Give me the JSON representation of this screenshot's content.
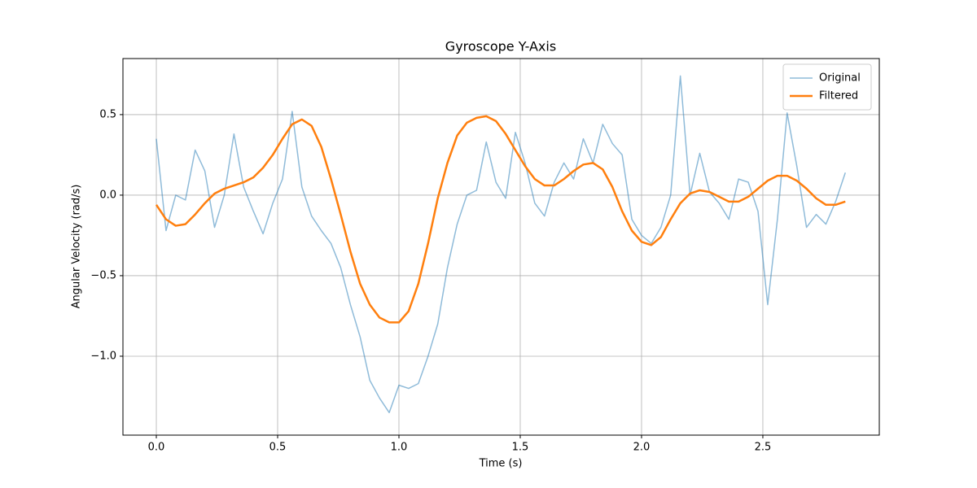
{
  "chart_data": {
    "type": "line",
    "title": "Gyroscope Y-Axis",
    "xlabel": "Time (s)",
    "ylabel": "Angular Velocity (rad/s)",
    "x": [
      0,
      0.04,
      0.08,
      0.12,
      0.16,
      0.2,
      0.24,
      0.28,
      0.32,
      0.36,
      0.4,
      0.44,
      0.48,
      0.52,
      0.56,
      0.6,
      0.64,
      0.68,
      0.72,
      0.76,
      0.8,
      0.84,
      0.88,
      0.92,
      0.96,
      1.0,
      1.04,
      1.08,
      1.12,
      1.16,
      1.2,
      1.24,
      1.28,
      1.32,
      1.36,
      1.4,
      1.44,
      1.48,
      1.52,
      1.56,
      1.6,
      1.64,
      1.68,
      1.72,
      1.76,
      1.8,
      1.84,
      1.88,
      1.92,
      1.96,
      2.0,
      2.04,
      2.08,
      2.12,
      2.16,
      2.2,
      2.24,
      2.28,
      2.32,
      2.36,
      2.4,
      2.44,
      2.48,
      2.52,
      2.56,
      2.6,
      2.64,
      2.68,
      2.72,
      2.76,
      2.8,
      2.84
    ],
    "series": [
      {
        "name": "Original",
        "color": "#1f77b4",
        "opacity": 0.5,
        "width": 1.5,
        "values": [
          0.35,
          -0.22,
          0.0,
          -0.03,
          0.28,
          0.15,
          -0.2,
          0.0,
          0.38,
          0.05,
          -0.1,
          -0.24,
          -0.05,
          0.1,
          0.52,
          0.05,
          -0.13,
          -0.22,
          -0.3,
          -0.45,
          -0.68,
          -0.88,
          -1.15,
          -1.26,
          -1.35,
          -1.18,
          -1.2,
          -1.17,
          -1.0,
          -0.8,
          -0.45,
          -0.18,
          0.0,
          0.03,
          0.33,
          0.08,
          -0.02,
          0.39,
          0.2,
          -0.05,
          -0.13,
          0.08,
          0.2,
          0.1,
          0.35,
          0.2,
          0.44,
          0.32,
          0.25,
          -0.15,
          -0.25,
          -0.3,
          -0.2,
          0.0,
          0.74,
          0.0,
          0.26,
          0.02,
          -0.05,
          -0.15,
          0.1,
          0.08,
          -0.1,
          -0.68,
          -0.15,
          0.51,
          0.18,
          -0.2,
          -0.12,
          -0.18,
          -0.04,
          0.14
        ]
      },
      {
        "name": "Filtered",
        "color": "#ff7f0e",
        "opacity": 1,
        "width": 2.5,
        "values": [
          -0.06,
          -0.15,
          -0.19,
          -0.18,
          -0.12,
          -0.05,
          0.01,
          0.04,
          0.06,
          0.08,
          0.11,
          0.17,
          0.25,
          0.35,
          0.44,
          0.47,
          0.43,
          0.3,
          0.1,
          -0.12,
          -0.35,
          -0.55,
          -0.68,
          -0.76,
          -0.79,
          -0.79,
          -0.72,
          -0.55,
          -0.3,
          -0.02,
          0.2,
          0.37,
          0.45,
          0.48,
          0.49,
          0.46,
          0.38,
          0.28,
          0.18,
          0.1,
          0.06,
          0.06,
          0.1,
          0.15,
          0.19,
          0.2,
          0.16,
          0.05,
          -0.1,
          -0.22,
          -0.29,
          -0.31,
          -0.26,
          -0.15,
          -0.05,
          0.01,
          0.03,
          0.02,
          -0.01,
          -0.04,
          -0.04,
          -0.01,
          0.04,
          0.09,
          0.12,
          0.12,
          0.09,
          0.04,
          -0.02,
          -0.06,
          -0.06,
          -0.04
        ]
      }
    ],
    "xlim": [
      -0.1376,
      2.98
    ],
    "ylim": [
      -1.49,
      0.848
    ],
    "xticks": [
      {
        "value": 0,
        "label": "0.0"
      },
      0.5,
      {
        "value": 1,
        "label": "1.0"
      },
      1.5,
      {
        "value": 2,
        "label": "2.0"
      },
      2.5
    ],
    "yticks": [
      {
        "value": -1,
        "label": "−1.0"
      },
      {
        "value": -0.5,
        "label": "−0.5"
      },
      {
        "value": 0,
        "label": "0.0"
      },
      0.5
    ],
    "grid": true,
    "legend": "upper right"
  }
}
